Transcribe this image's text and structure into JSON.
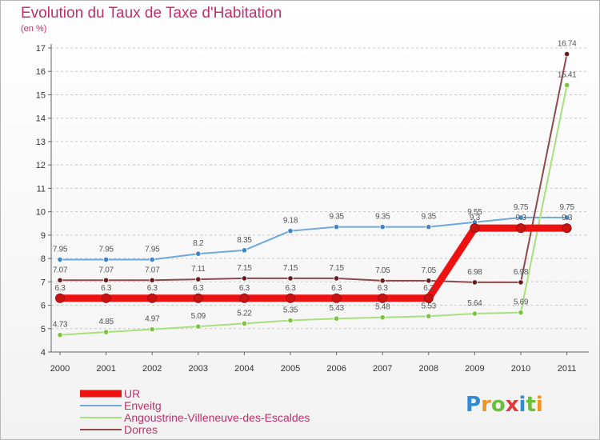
{
  "chart_data": {
    "type": "line",
    "title": "Evolution du Taux de Taxe d'Habitation",
    "subtitle": "(en %)",
    "xlabel": "",
    "ylabel": "(en %)",
    "ylim": [
      4,
      17
    ],
    "yticks": [
      "4",
      "5",
      "6",
      "7",
      "8",
      "9",
      "10",
      "11",
      "12",
      "13",
      "14",
      "15",
      "16",
      "17"
    ],
    "x": [
      "2000",
      "2001",
      "2002",
      "2003",
      "2004",
      "2005",
      "2006",
      "2007",
      "2008",
      "2009",
      "2010",
      "2011"
    ],
    "grid": "horizontal dashed",
    "legend": "bottom-left",
    "series": [
      {
        "name": "UR",
        "color": "#ee1111",
        "marker": "#cc1111",
        "values": [
          6.3,
          6.3,
          6.3,
          6.3,
          6.3,
          6.3,
          6.3,
          6.3,
          6.3,
          9.3,
          9.3,
          9.3
        ],
        "labels": [
          "6.3",
          "6.3",
          "6.3",
          "6.3",
          "6.3",
          "6.3",
          "6.3",
          "6.3",
          "6.3",
          "9.3",
          "9.3",
          "9.3"
        ]
      },
      {
        "name": "Enveitg",
        "color": "#6fa8dc",
        "marker": "#3d85c6",
        "values": [
          7.95,
          7.95,
          7.95,
          8.2,
          8.35,
          9.18,
          9.35,
          9.35,
          9.35,
          9.55,
          9.75,
          9.75
        ],
        "labels": [
          "7.95",
          "7.95",
          "7.95",
          "8.2",
          "8.35",
          "9.18",
          "9.35",
          "9.35",
          "9.35",
          "9.55",
          "9.75",
          "9.75"
        ]
      },
      {
        "name": "Angoustrine-Villeneuve-des-Escaldes",
        "color": "#a8e07c",
        "marker": "#7dc242",
        "values": [
          4.73,
          4.85,
          4.97,
          5.09,
          5.22,
          5.35,
          5.43,
          5.48,
          5.53,
          5.64,
          5.69,
          15.41
        ],
        "labels": [
          "4.73",
          "4.85",
          "4.97",
          "5.09",
          "5.22",
          "5.35",
          "5.43",
          "5.48",
          "5.53",
          "5.64",
          "5.69",
          "15.41"
        ]
      },
      {
        "name": "Dorres",
        "color": "#8e4a4a",
        "marker": "#6b1a1a",
        "values": [
          7.07,
          7.07,
          7.07,
          7.11,
          7.15,
          7.15,
          7.15,
          7.05,
          7.05,
          6.98,
          6.98,
          16.74
        ],
        "labels": [
          "7.07",
          "7.07",
          "7.07",
          "7.11",
          "7.15",
          "7.15",
          "7.15",
          "7.05",
          "7.05",
          "6.98",
          "6.98",
          "16.74"
        ]
      }
    ]
  },
  "logo": {
    "letters": [
      "P",
      "r",
      "o",
      "x",
      "i",
      "t",
      "i"
    ],
    "colors": [
      "#2e8bd6",
      "#f29422",
      "#6cbf3c",
      "#e03c3c",
      "#2e8bd6",
      "#6cbf3c",
      "#f29422"
    ]
  }
}
